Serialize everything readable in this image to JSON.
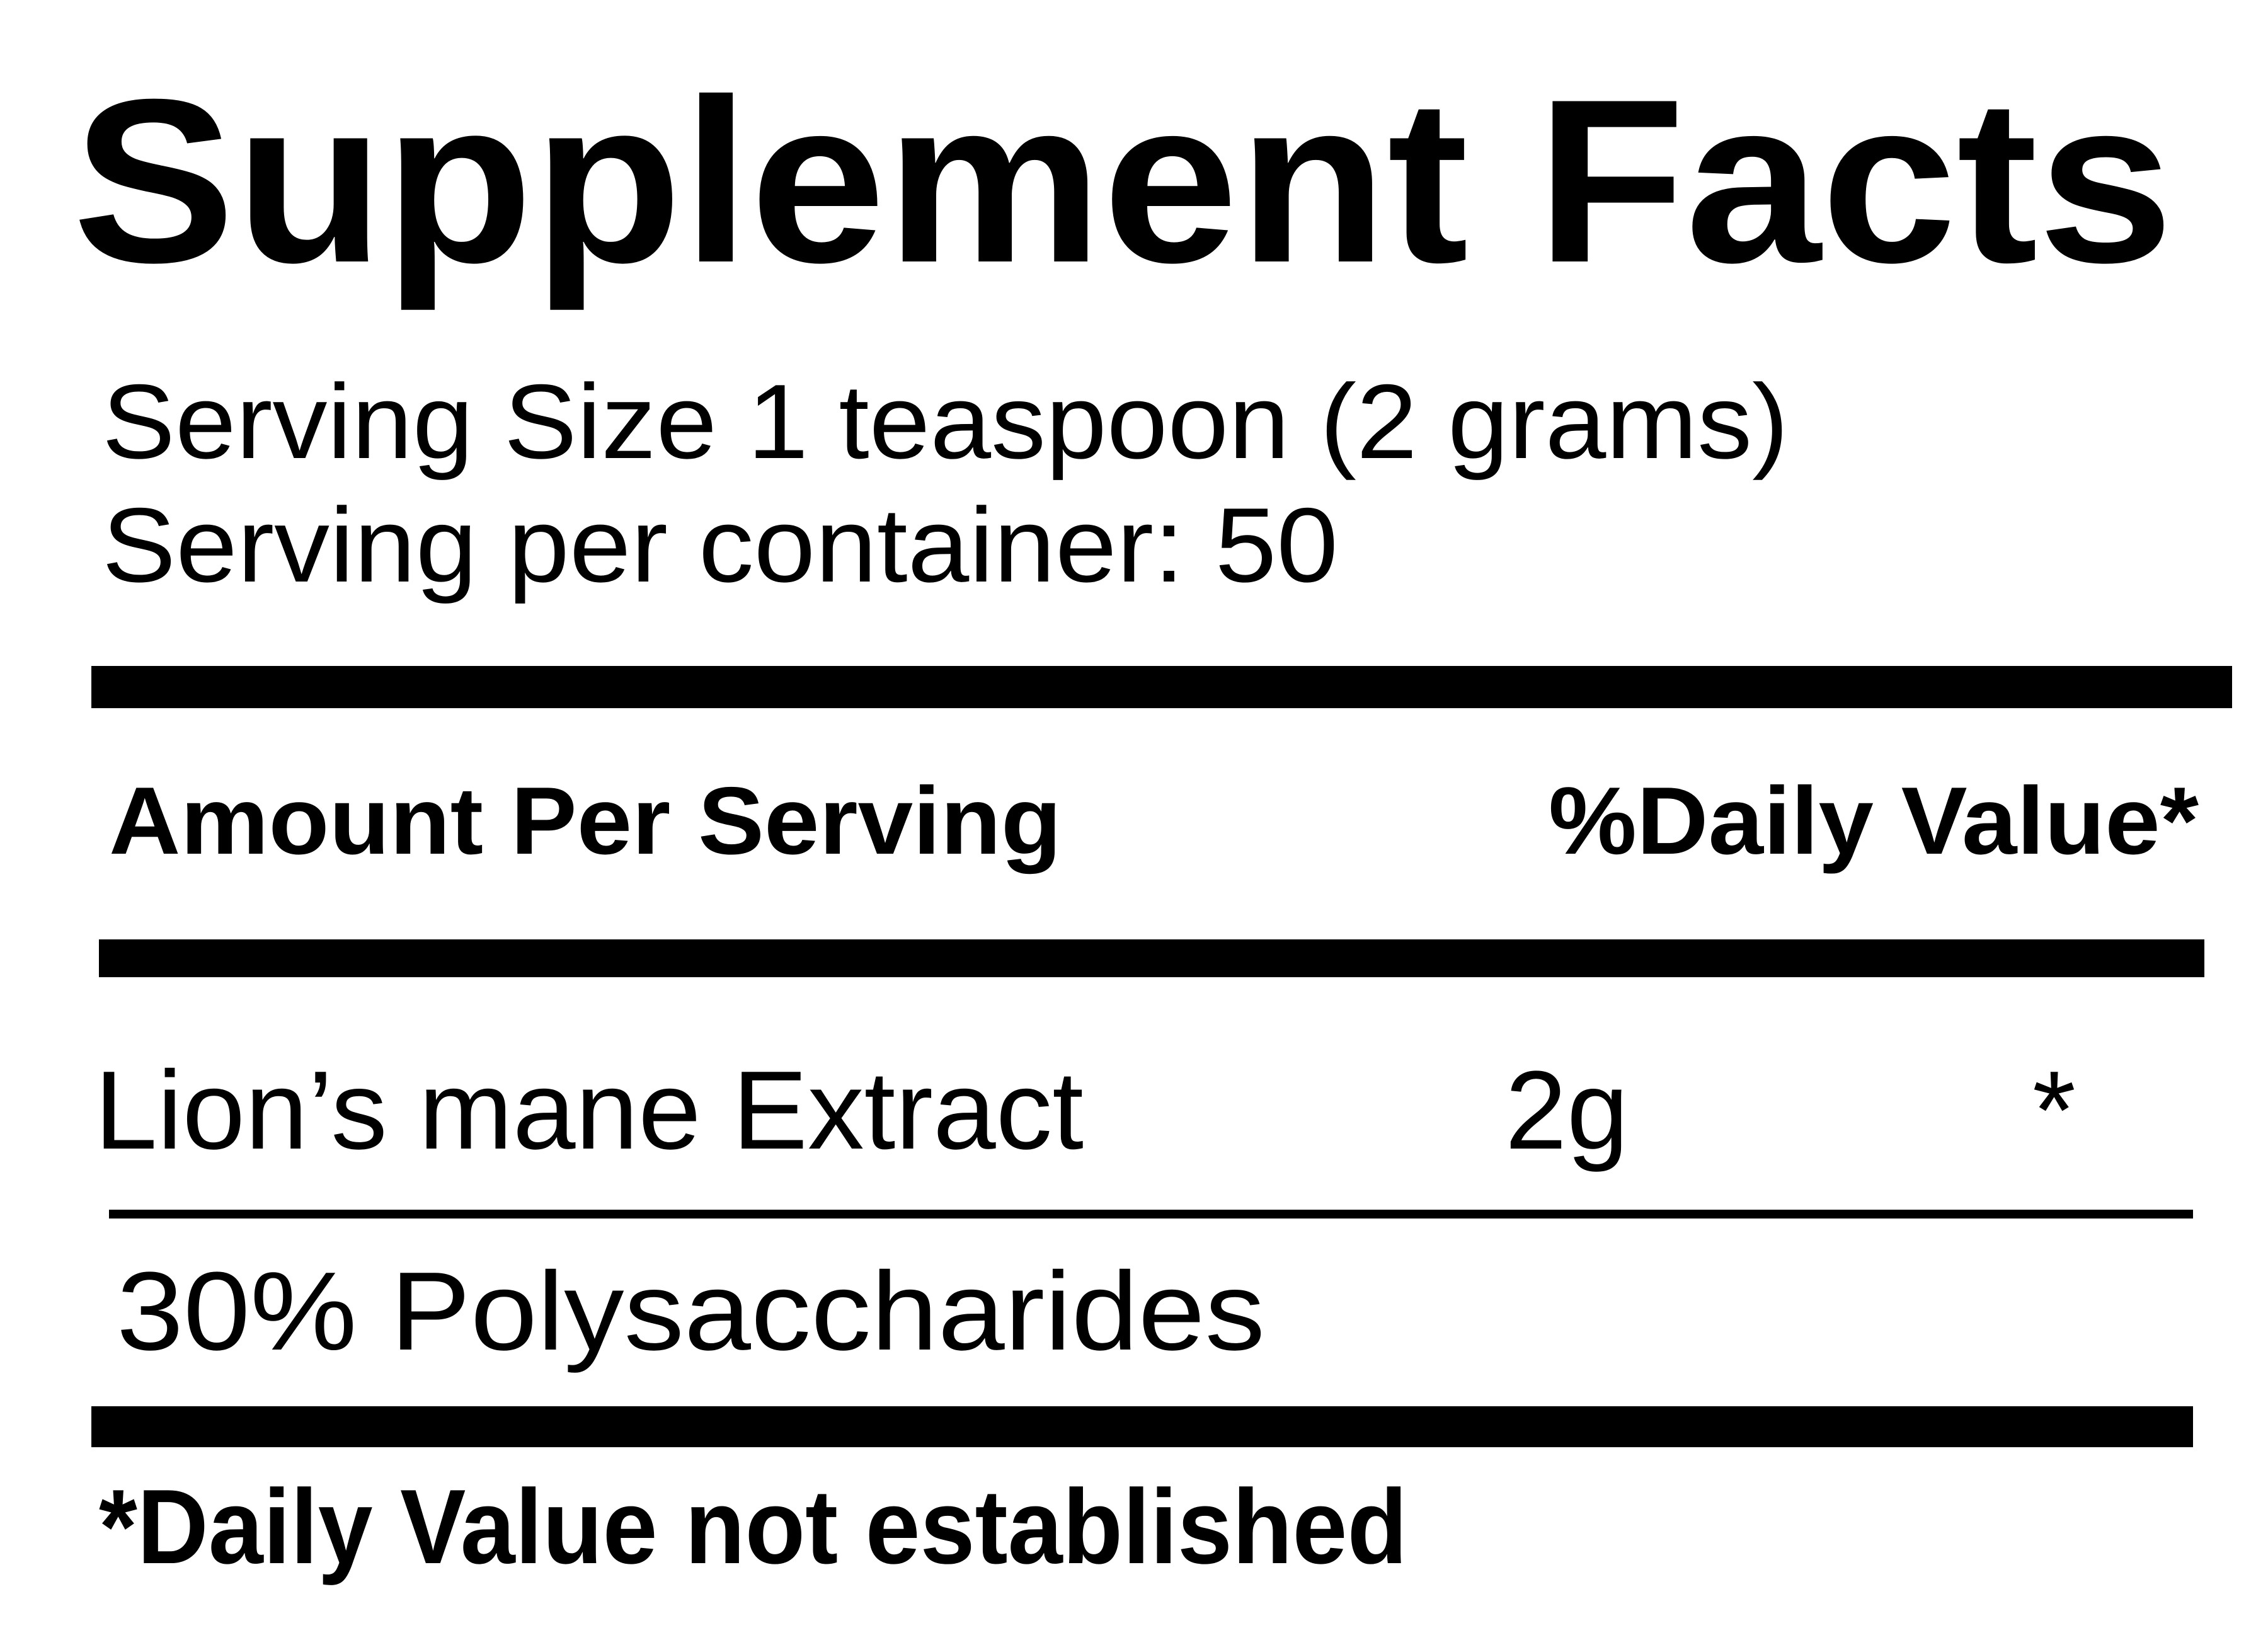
{
  "label": {
    "title": "Supplement Facts",
    "serving_size": "Serving Size 1 teaspoon (2 grams)",
    "servings_per_container": "Serving per container: 50",
    "header": {
      "amount": "Amount Per Serving",
      "daily_value": "%Daily Value*"
    },
    "ingredients": [
      {
        "name": "Lion’s mane Extract",
        "amount": "2g",
        "daily_value": "*"
      },
      {
        "name": "30% Polysaccharides"
      }
    ],
    "footnote": "*Daily Value not established"
  },
  "colors": {
    "text": "#000000",
    "background": "#ffffff"
  }
}
